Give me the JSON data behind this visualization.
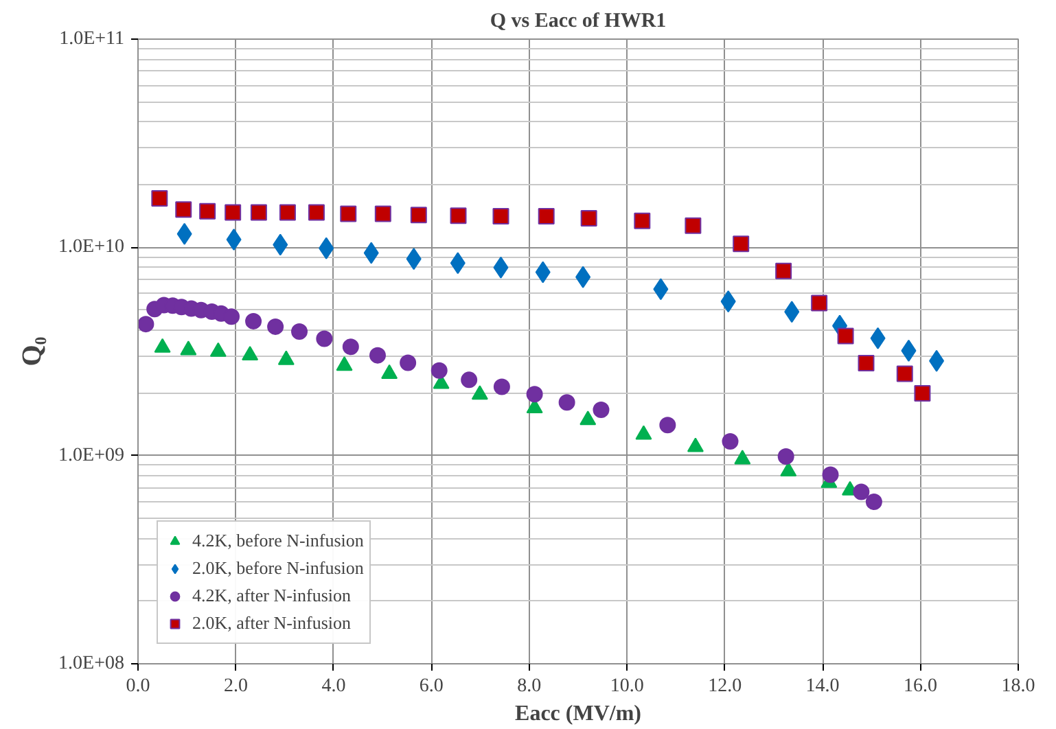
{
  "chart_data": {
    "type": "scatter",
    "title": "Q vs Eacc of HWR1",
    "xlabel": "Eacc (MV/m)",
    "ylabel": "Q₀",
    "xlim": [
      0,
      18
    ],
    "xticks": [
      {
        "value": 0,
        "label": "0.0"
      },
      {
        "value": 2,
        "label": "2.0"
      },
      {
        "value": 4,
        "label": "4.0"
      },
      {
        "value": 6,
        "label": "6.0"
      },
      {
        "value": 8,
        "label": "8.0"
      },
      {
        "value": 10,
        "label": "10.0"
      },
      {
        "value": 12,
        "label": "12.0"
      },
      {
        "value": 14,
        "label": "14.0"
      },
      {
        "value": 16,
        "label": "16.0"
      },
      {
        "value": 18,
        "label": "18.0"
      }
    ],
    "ylim": [
      100000000.0,
      100000000000.0
    ],
    "yticks": [
      {
        "value": 100000000.0,
        "label": "1.0E+08"
      },
      {
        "value": 1000000000.0,
        "label": "1.0E+09"
      },
      {
        "value": 10000000000.0,
        "label": "1.0E+10"
      },
      {
        "value": 100000000000.0,
        "label": "1.0E+11"
      }
    ],
    "log": "y",
    "grid": true,
    "legend": "bottom left",
    "series": [
      {
        "name": "4.2K, before N-infusion",
        "color": "#00b050",
        "marker": "triangle",
        "x": [
          0.5,
          1.03,
          1.64,
          2.29,
          3.03,
          4.22,
          5.14,
          6.2,
          6.99,
          8.11,
          9.2,
          10.34,
          11.4,
          12.36,
          13.3,
          14.13,
          14.56
        ],
        "values": [
          3300000000.0,
          3210000000.0,
          3150000000.0,
          3030000000.0,
          2880000000.0,
          2700000000.0,
          2470000000.0,
          2210000000.0,
          1960000000.0,
          1690000000.0,
          1480000000.0,
          1260000000.0,
          1100000000.0,
          960000000.0,
          840000000.0,
          740000000.0,
          680000000.0
        ]
      },
      {
        "name": "2.0K, before N-infusion",
        "color": "#0070c0",
        "marker": "diamond",
        "x": [
          0.95,
          1.96,
          2.91,
          3.85,
          4.77,
          5.64,
          6.54,
          7.42,
          8.28,
          9.1,
          10.69,
          12.07,
          13.37,
          14.35,
          15.13,
          15.76,
          16.33
        ],
        "values": [
          11600000000.0,
          10900000000.0,
          10300000000.0,
          9900000000.0,
          9400000000.0,
          8800000000.0,
          8400000000.0,
          8000000000.0,
          7600000000.0,
          7200000000.0,
          6300000000.0,
          5500000000.0,
          4900000000.0,
          4200000000.0,
          3660000000.0,
          3190000000.0,
          2850000000.0
        ]
      },
      {
        "name": "4.2K, after N-infusion",
        "color": "#7030a0",
        "marker": "circle",
        "x": [
          0.16,
          0.34,
          0.53,
          0.71,
          0.89,
          1.09,
          1.29,
          1.51,
          1.7,
          1.91,
          2.36,
          2.81,
          3.3,
          3.81,
          4.35,
          4.9,
          5.52,
          6.16,
          6.77,
          7.44,
          8.11,
          8.77,
          9.47,
          10.83,
          12.11,
          13.25,
          14.16,
          14.79,
          15.05
        ],
        "values": [
          4280000000.0,
          5050000000.0,
          5280000000.0,
          5250000000.0,
          5170000000.0,
          5080000000.0,
          5000000000.0,
          4910000000.0,
          4810000000.0,
          4650000000.0,
          4420000000.0,
          4160000000.0,
          3940000000.0,
          3640000000.0,
          3330000000.0,
          3030000000.0,
          2790000000.0,
          2560000000.0,
          2310000000.0,
          2140000000.0,
          1970000000.0,
          1800000000.0,
          1660000000.0,
          1400000000.0,
          1170000000.0,
          990000000.0,
          810000000.0,
          670000000.0,
          600000000.0
        ]
      },
      {
        "name": "2.0K, after N-infusion",
        "color": "#c00000",
        "marker": "square",
        "x": [
          0.44,
          0.93,
          1.42,
          1.94,
          2.47,
          3.06,
          3.65,
          4.3,
          5.01,
          5.74,
          6.55,
          7.42,
          8.35,
          9.22,
          10.31,
          11.35,
          12.33,
          13.2,
          13.93,
          14.47,
          14.89,
          15.68,
          16.04
        ],
        "values": [
          17200000000.0,
          15200000000.0,
          14900000000.0,
          14700000000.0,
          14700000000.0,
          14700000000.0,
          14700000000.0,
          14500000000.0,
          14500000000.0,
          14300000000.0,
          14200000000.0,
          14100000000.0,
          14100000000.0,
          13800000000.0,
          13400000000.0,
          12700000000.0,
          10400000000.0,
          7700000000.0,
          5400000000.0,
          3750000000.0,
          2780000000.0,
          2470000000.0,
          1990000000.0
        ]
      }
    ]
  }
}
